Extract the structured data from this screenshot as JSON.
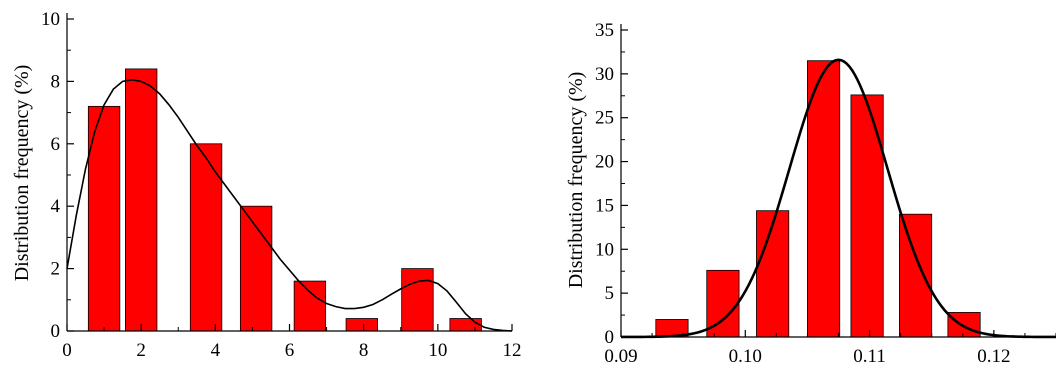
{
  "chart_data": [
    {
      "type": "bar",
      "title": "",
      "xlabel": "",
      "ylabel": "Distribution frequency (%)",
      "xlim": [
        0,
        12
      ],
      "ylim": [
        0,
        10
      ],
      "xticks": [
        0,
        2,
        4,
        6,
        8,
        10,
        12
      ],
      "xtick_labels": [
        "0",
        "2",
        "4",
        "6",
        "8",
        "10",
        "12"
      ],
      "yticks": [
        0,
        2,
        4,
        6,
        8,
        10
      ],
      "ytick_labels": [
        "0",
        "2",
        "4",
        "6",
        "8",
        "10"
      ],
      "bar_width": 0.85,
      "bar_color": "#ff0000",
      "bars": [
        {
          "x": 1.0,
          "value": 7.2
        },
        {
          "x": 2.0,
          "value": 8.4
        },
        {
          "x": 3.75,
          "value": 6.0
        },
        {
          "x": 5.1,
          "value": 4.0
        },
        {
          "x": 6.55,
          "value": 1.6
        },
        {
          "x": 7.95,
          "value": 0.4
        },
        {
          "x": 9.45,
          "value": 2.0
        },
        {
          "x": 10.75,
          "value": 0.4
        }
      ],
      "fit_curve": {
        "color": "#000000",
        "points": [
          [
            0,
            2.0
          ],
          [
            0.25,
            3.7
          ],
          [
            0.5,
            5.2
          ],
          [
            0.75,
            6.4
          ],
          [
            1.0,
            7.25
          ],
          [
            1.25,
            7.75
          ],
          [
            1.5,
            8.0
          ],
          [
            1.75,
            8.05
          ],
          [
            2.0,
            8.0
          ],
          [
            2.25,
            7.85
          ],
          [
            2.5,
            7.6
          ],
          [
            2.75,
            7.25
          ],
          [
            3.0,
            6.85
          ],
          [
            3.25,
            6.4
          ],
          [
            3.5,
            5.95
          ],
          [
            3.75,
            5.55
          ],
          [
            4.0,
            5.1
          ],
          [
            4.25,
            4.7
          ],
          [
            4.5,
            4.3
          ],
          [
            4.75,
            3.9
          ],
          [
            5.0,
            3.5
          ],
          [
            5.25,
            3.1
          ],
          [
            5.5,
            2.7
          ],
          [
            5.75,
            2.3
          ],
          [
            6.0,
            1.95
          ],
          [
            6.25,
            1.6
          ],
          [
            6.5,
            1.3
          ],
          [
            6.75,
            1.05
          ],
          [
            7.0,
            0.88
          ],
          [
            7.25,
            0.78
          ],
          [
            7.5,
            0.72
          ],
          [
            7.75,
            0.72
          ],
          [
            8.0,
            0.76
          ],
          [
            8.25,
            0.85
          ],
          [
            8.5,
            1.0
          ],
          [
            8.75,
            1.18
          ],
          [
            9.0,
            1.35
          ],
          [
            9.25,
            1.5
          ],
          [
            9.5,
            1.6
          ],
          [
            9.75,
            1.62
          ],
          [
            10.0,
            1.52
          ],
          [
            10.25,
            1.28
          ],
          [
            10.5,
            0.92
          ],
          [
            10.75,
            0.55
          ],
          [
            11.0,
            0.28
          ],
          [
            11.25,
            0.12
          ],
          [
            11.5,
            0.05
          ],
          [
            11.75,
            0.02
          ],
          [
            12.0,
            0.0
          ]
        ]
      }
    },
    {
      "type": "bar",
      "title": "",
      "xlabel": "",
      "ylabel": "Distribution frequency (%)",
      "xlim": [
        0.09,
        0.125
      ],
      "ylim": [
        0,
        35
      ],
      "xticks": [
        0.09,
        0.1,
        0.11,
        0.12
      ],
      "xtick_labels": [
        "0.09",
        "0.10",
        "0.11",
        "0.12"
      ],
      "yticks": [
        0,
        5,
        10,
        15,
        20,
        25,
        30,
        35
      ],
      "ytick_labels": [
        "0",
        "5",
        "10",
        "15",
        "20",
        "25",
        "30",
        "35"
      ],
      "bar_width": 0.0026,
      "bar_color": "#ff0000",
      "bars": [
        {
          "x": 0.0941,
          "value": 2.0
        },
        {
          "x": 0.0982,
          "value": 7.6
        },
        {
          "x": 0.1022,
          "value": 14.4
        },
        {
          "x": 0.1063,
          "value": 31.5
        },
        {
          "x": 0.1098,
          "value": 27.6
        },
        {
          "x": 0.1137,
          "value": 14.0
        },
        {
          "x": 0.1176,
          "value": 2.8
        }
      ],
      "fit_curve": {
        "color": "#000000",
        "gaussian": {
          "mean": 0.1075,
          "sd": 0.00395,
          "peak": 31.6
        }
      }
    }
  ]
}
